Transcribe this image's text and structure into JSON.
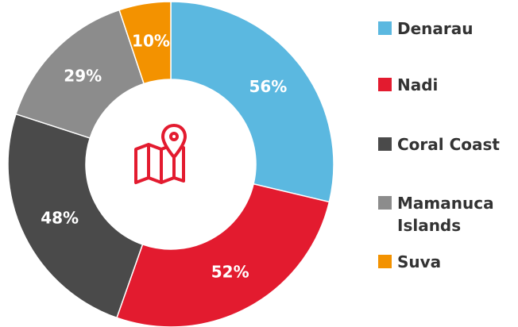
{
  "chart_data": {
    "type": "pie",
    "donut": true,
    "categories": [
      "Denarau",
      "Nadi",
      "Coral Coast",
      "Mamanuca Islands",
      "Suva"
    ],
    "values": [
      56,
      52,
      48,
      29,
      10
    ],
    "value_labels": [
      "56%",
      "52%",
      "48%",
      "29%",
      "10%"
    ],
    "colors": [
      "#5bb8e0",
      "#e31b2f",
      "#4a4a4a",
      "#8c8c8c",
      "#f39200"
    ],
    "legend": "right"
  }
}
